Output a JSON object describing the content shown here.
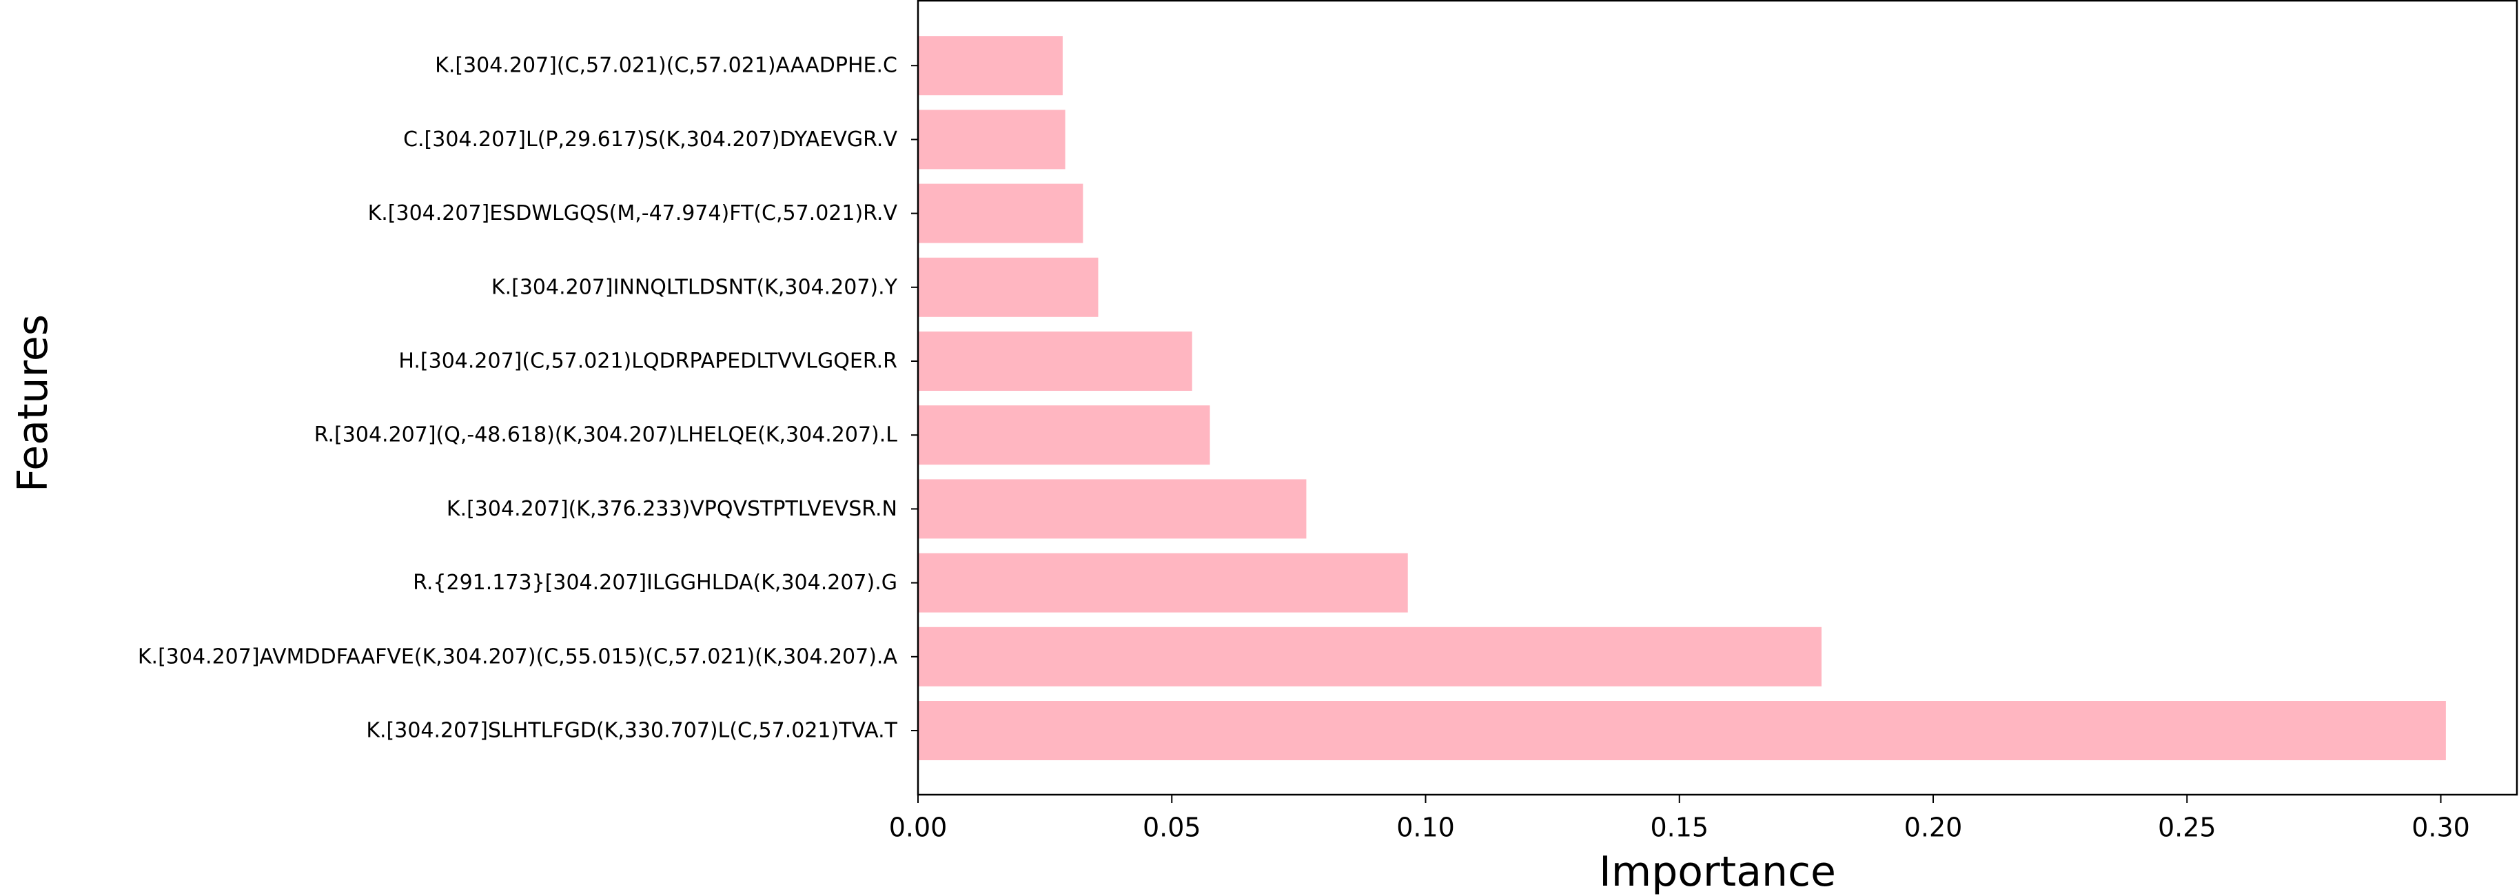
{
  "chart_data": {
    "type": "bar",
    "orientation": "horizontal",
    "title": "",
    "xlabel": "Importance",
    "ylabel": "Features",
    "xlim": [
      0,
      0.315
    ],
    "xticks": [
      0.0,
      0.05,
      0.1,
      0.15,
      0.2,
      0.25,
      0.3
    ],
    "xtick_labels": [
      "0.00",
      "0.05",
      "0.10",
      "0.15",
      "0.20",
      "0.25",
      "0.30"
    ],
    "grid": false,
    "legend": "none",
    "bar_color": "#ffb6c1",
    "categories": [
      "K.[304.207]SLHTLFGD(K,330.707)L(C,57.021)TVA.T",
      "K.[304.207]AVMDDFAAFVE(K,304.207)(C,55.015)(C,57.021)(K,304.207).A",
      "R.{291.173}[304.207]ILGGHLDA(K,304.207).G",
      "K.[304.207](K,376.233)VPQVSTPTLVEVSR.N",
      "R.[304.207](Q,-48.618)(K,304.207)LHELQE(K,304.207).L",
      "H.[304.207](C,57.021)LQDRPAPEDLTVVLGQER.R",
      "K.[304.207]INNQLTLDSNT(K,304.207).Y",
      "K.[304.207]ESDWLGQS(M,-47.974)FT(C,57.021)R.V",
      "C.[304.207]L(P,29.617)S(K,304.207)DYAEVGR.V",
      "K.[304.207](C,57.021)(C,57.021)AAADPHE.C"
    ],
    "values": [
      0.301,
      0.178,
      0.0965,
      0.0765,
      0.0575,
      0.054,
      0.0355,
      0.0325,
      0.029,
      0.0285
    ]
  }
}
